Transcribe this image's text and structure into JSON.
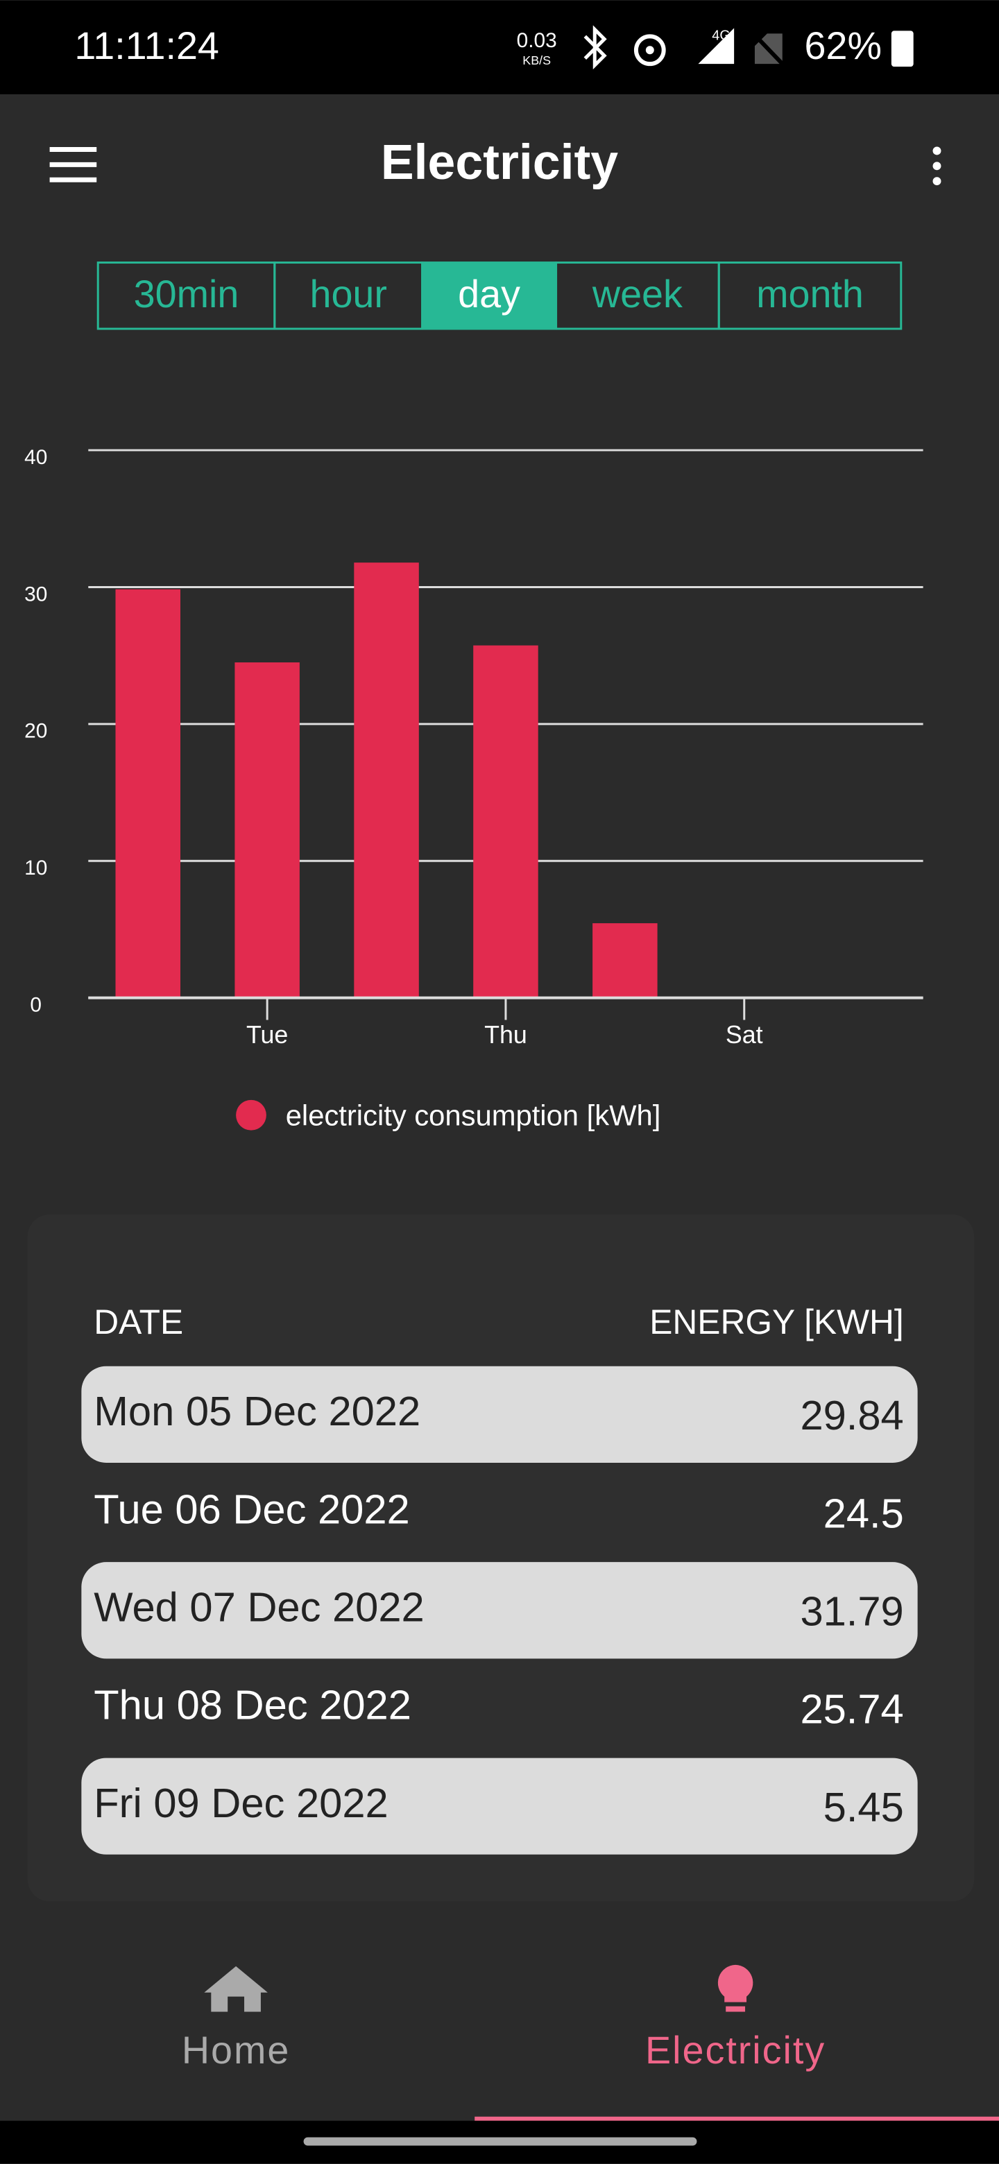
{
  "status_bar": {
    "time": "11:11:24",
    "speed": "0.03",
    "speed_unit": "KB/S",
    "network": "4G",
    "battery": "62%"
  },
  "app_bar": {
    "title": "Electricity"
  },
  "tabs": {
    "items": [
      "30min",
      "hour",
      "day",
      "week",
      "month"
    ],
    "selected": 2
  },
  "chart_data": {
    "type": "bar",
    "categories": [
      null,
      "Tue",
      null,
      "Thu",
      null,
      "Sat",
      null
    ],
    "series": [
      {
        "name": "electricity consumption [kWh]",
        "color": "#e22b4f",
        "values": [
          29.84,
          24.5,
          31.79,
          25.74,
          5.45,
          null,
          null
        ]
      }
    ],
    "ylim": [
      0,
      40
    ],
    "yticks": [
      0,
      10,
      20,
      30,
      40
    ],
    "grid": true,
    "legend": "bottom"
  },
  "table": {
    "headers": [
      "DATE",
      "ENERGY [KWH]"
    ],
    "rows": [
      "Mon 05 Dec 2022",
      "Tue 06 Dec 2022",
      "Wed 07 Dec 2022",
      "Thu 08 Dec 2022",
      "Fri 09 Dec 2022"
    ]
  },
  "nav": {
    "items": [
      "Home",
      "Electricity"
    ],
    "selected": 1
  }
}
